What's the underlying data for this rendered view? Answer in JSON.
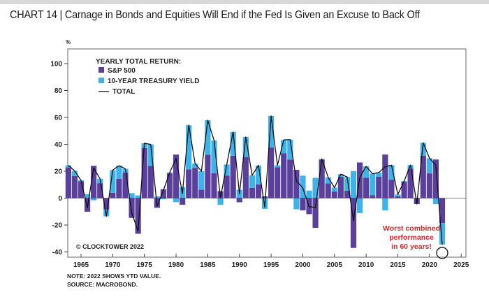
{
  "header": {
    "title": "CHART 14 | Carnage in Bonds and Equities Will End if the Fed Is Given an Excuse to Back Off"
  },
  "footer": {
    "note": "NOTE: 2022 SHOWS YTD VALUE.",
    "source": "SOURCE: MACROBOND."
  },
  "colors": {
    "sp500": "#5b3f9c",
    "treasury": "#3db3ea",
    "total": "#111111",
    "annotation": "#d7262b"
  },
  "chart_data": {
    "type": "bar",
    "title": "Carnage in Bonds and Equities Will End if the Fed Is Given an Excuse to Back Off",
    "ylabel": "%",
    "xlabel": "",
    "ylim": [
      -42,
      110
    ],
    "xlim": [
      1962.5,
      2025.5
    ],
    "yticks": [
      100,
      80,
      60,
      40,
      20,
      0,
      -20,
      -40
    ],
    "xticks": [
      1965,
      1970,
      1975,
      1980,
      1985,
      1990,
      1995,
      2000,
      2005,
      2010,
      2015,
      2020,
      2025
    ],
    "legend": {
      "title": "YEARLY TOTAL RETURN:",
      "entries": [
        "S&P 500",
        "10-YEAR TREASURY YIELD",
        "TOTAL"
      ],
      "position": "top-left"
    },
    "copyright": "© CLOCKTOWER 2022",
    "annotation": {
      "text": [
        "Worst combined",
        "performance",
        "in 60 years!"
      ],
      "year": 2022
    },
    "x": [
      1963,
      1964,
      1965,
      1966,
      1967,
      1968,
      1969,
      1970,
      1971,
      1972,
      1973,
      1974,
      1975,
      1976,
      1977,
      1978,
      1979,
      1980,
      1981,
      1982,
      1983,
      1984,
      1985,
      1986,
      1987,
      1988,
      1989,
      1990,
      1991,
      1992,
      1993,
      1994,
      1995,
      1996,
      1997,
      1998,
      1999,
      2000,
      2001,
      2002,
      2003,
      2004,
      2005,
      2006,
      2007,
      2008,
      2009,
      2010,
      2011,
      2012,
      2013,
      2014,
      2015,
      2016,
      2017,
      2018,
      2019,
      2020,
      2021,
      2022
    ],
    "series": [
      {
        "name": "S&P 500",
        "values": [
          22.8,
          16.5,
          12.5,
          -10.1,
          24.0,
          11.1,
          -8.5,
          4.0,
          14.3,
          19.0,
          -14.7,
          -26.5,
          37.2,
          23.9,
          -7.2,
          6.6,
          18.4,
          32.4,
          -4.9,
          21.4,
          22.5,
          6.3,
          32.2,
          18.5,
          5.2,
          16.8,
          31.5,
          -3.1,
          30.5,
          7.6,
          10.1,
          1.3,
          37.6,
          23.0,
          33.4,
          28.6,
          21.0,
          -9.1,
          -11.9,
          -22.1,
          28.7,
          10.9,
          4.9,
          15.8,
          5.5,
          -37.0,
          26.5,
          15.1,
          2.1,
          16.0,
          32.4,
          13.7,
          1.4,
          12.0,
          21.8,
          -4.4,
          31.5,
          18.4,
          28.7,
          -18.5
        ]
      },
      {
        "name": "10-YEAR TREASURY YIELD",
        "values": [
          1.6,
          3.7,
          0.7,
          2.9,
          -1.6,
          3.3,
          -5.0,
          16.8,
          9.8,
          2.8,
          3.7,
          2.0,
          3.6,
          16.0,
          1.3,
          -0.8,
          0.7,
          -3.0,
          8.2,
          32.8,
          3.2,
          13.7,
          25.7,
          24.3,
          -5.0,
          8.2,
          17.7,
          6.2,
          15.0,
          9.4,
          14.2,
          -8.0,
          23.5,
          1.4,
          9.9,
          14.9,
          -8.3,
          16.7,
          5.6,
          15.1,
          0.4,
          4.5,
          2.9,
          2.0,
          10.2,
          20.1,
          -11.1,
          8.5,
          16.0,
          3.0,
          -9.1,
          10.8,
          1.3,
          0.7,
          2.8,
          0,
          9.6,
          11.3,
          -4.4,
          -16.0
        ]
      }
    ],
    "total_line": {
      "name": "TOTAL",
      "values": [
        24.4,
        20.2,
        13.2,
        -7.2,
        22.4,
        14.4,
        -13.5,
        20.8,
        24.1,
        21.8,
        -11.0,
        -24.5,
        40.8,
        39.9,
        -5.9,
        5.8,
        19.1,
        29.4,
        3.3,
        54.2,
        25.7,
        20.0,
        57.9,
        42.8,
        0.2,
        25.0,
        49.2,
        3.1,
        45.5,
        17.0,
        24.3,
        -6.7,
        61.1,
        24.4,
        43.3,
        43.5,
        12.7,
        7.6,
        -6.3,
        -7.0,
        29.1,
        15.4,
        7.8,
        17.8,
        15.7,
        -16.9,
        15.4,
        23.6,
        18.1,
        19.0,
        23.3,
        24.5,
        2.7,
        12.7,
        24.6,
        -4.4,
        41.1,
        29.7,
        24.3,
        -34.5
      ]
    }
  }
}
